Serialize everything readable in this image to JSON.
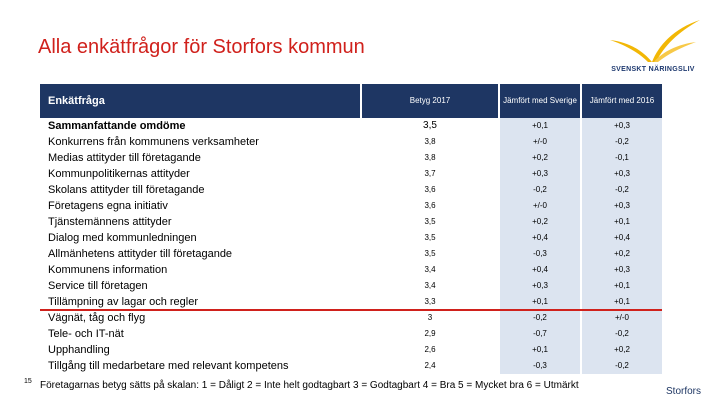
{
  "title": "Alla enkätfrågor för Storfors kommun",
  "logo": {
    "name": "SVENSKT NÄRINGSLIV"
  },
  "table": {
    "headers": {
      "label": "Enkätfråga",
      "betyg": "Betyg 2017",
      "sverige": "Jämfört med Sverige",
      "year2016": "Jämfört med 2016"
    },
    "rows": [
      {
        "label": "Sammanfattande omdöme",
        "betyg": "3,5",
        "sverige": "+0,1",
        "year2016": "+0,3"
      },
      {
        "label": "Konkurrens från kommunens verksamheter",
        "betyg": "3,8",
        "sverige": "+/-0",
        "year2016": "-0,2"
      },
      {
        "label": "Medias attityder till företagande",
        "betyg": "3,8",
        "sverige": "+0,2",
        "year2016": "-0,1"
      },
      {
        "label": "Kommunpolitikernas attityder",
        "betyg": "3,7",
        "sverige": "+0,3",
        "year2016": "+0,3"
      },
      {
        "label": "Skolans attityder till företagande",
        "betyg": "3,6",
        "sverige": "-0,2",
        "year2016": "-0,2"
      },
      {
        "label": "Företagens egna initiativ",
        "betyg": "3,6",
        "sverige": "+/-0",
        "year2016": "+0,3"
      },
      {
        "label": "Tjänstemännens attityder",
        "betyg": "3,5",
        "sverige": "+0,2",
        "year2016": "+0,1"
      },
      {
        "label": "Dialog med kommunledningen",
        "betyg": "3,5",
        "sverige": "+0,4",
        "year2016": "+0,4"
      },
      {
        "label": "Allmänhetens attityder till företagande",
        "betyg": "3,5",
        "sverige": "-0,3",
        "year2016": "+0,2"
      },
      {
        "label": "Kommunens information",
        "betyg": "3,4",
        "sverige": "+0,4",
        "year2016": "+0,3"
      },
      {
        "label": "Service till företagen",
        "betyg": "3,4",
        "sverige": "+0,3",
        "year2016": "+0,1"
      },
      {
        "label": "Tillämpning av lagar och regler",
        "betyg": "3,3",
        "sverige": "+0,1",
        "year2016": "+0,1"
      },
      {
        "label": "Vägnät, tåg och flyg",
        "betyg": "3",
        "sverige": "-0,2",
        "year2016": "+/-0"
      },
      {
        "label": "Tele- och IT-nät",
        "betyg": "2,9",
        "sverige": "-0,7",
        "year2016": "-0,2"
      },
      {
        "label": "Upphandling",
        "betyg": "2,6",
        "sverige": "+0,1",
        "year2016": "+0,2"
      },
      {
        "label": "Tillgång till medarbetare med relevant kompetens",
        "betyg": "2,4",
        "sverige": "-0,3",
        "year2016": "-0,2"
      }
    ]
  },
  "footnote": {
    "number": "15",
    "text": "Företagarnas betyg sätts på skalan: 1 = Dåligt 2 = Inte helt godtagbart 3 = Godtagbart 4 = Bra 5 = Mycket bra 6 = Utmärkt"
  },
  "corner_label": "Storfors",
  "colors": {
    "title": "#d0211c",
    "header_bg": "#1e3663",
    "band_bg": "#dce4f0",
    "divider": "#d0211c"
  }
}
